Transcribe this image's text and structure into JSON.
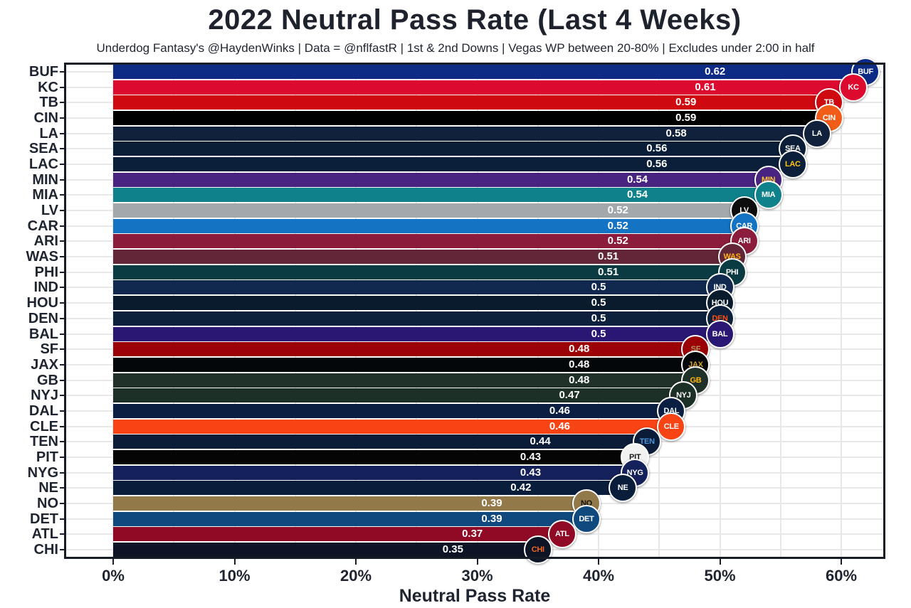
{
  "header": {
    "title": "2022 Neutral Pass Rate (Last 4 Weeks)",
    "subtitle": "Underdog Fantasy's @HaydenWinks | Data = @nflfastR | 1st & 2nd Downs | Vegas WP between 20-80% | Excludes under 2:00 in half"
  },
  "x_axis": {
    "label": "Neutral Pass Rate",
    "ticks": [
      {
        "pct": 0,
        "label": "0%"
      },
      {
        "pct": 10,
        "label": "10%"
      },
      {
        "pct": 20,
        "label": "20%"
      },
      {
        "pct": 30,
        "label": "30%"
      },
      {
        "pct": 40,
        "label": "40%"
      },
      {
        "pct": 50,
        "label": "50%"
      },
      {
        "pct": 60,
        "label": "60%"
      }
    ]
  },
  "colors": {
    "background": "#FFFFFF",
    "grid": "#E8E8E8",
    "frame": "#161C26",
    "text": "#1E2430",
    "value_label": "#FFFFFF"
  },
  "chart_data": {
    "type": "bar",
    "orientation": "horizontal",
    "title": "2022 Neutral Pass Rate (Last 4 Weeks)",
    "subtitle": "Underdog Fantasy's @HaydenWinks | Data = @nflfastR | 1st & 2nd Downs | Vegas WP between 20-80% | Excludes under 2:00 in half",
    "xlabel": "Neutral Pass Rate",
    "ylabel": "",
    "x_tick_labels": [
      "0%",
      "10%",
      "20%",
      "30%",
      "40%",
      "50%",
      "60%"
    ],
    "x_range_pct": [
      0,
      60
    ],
    "gridline_step_pct": 5,
    "grid": true,
    "legend": false,
    "value_labels_shown_inside_bars": true,
    "categories": [
      "BUF",
      "KC",
      "TB",
      "CIN",
      "LA",
      "SEA",
      "LAC",
      "MIN",
      "MIA",
      "LV",
      "CAR",
      "ARI",
      "WAS",
      "PHI",
      "IND",
      "HOU",
      "DEN",
      "BAL",
      "SF",
      "JAX",
      "GB",
      "NYJ",
      "DAL",
      "CLE",
      "TEN",
      "PIT",
      "NYG",
      "NE",
      "NO",
      "DET",
      "ATL",
      "CHI"
    ],
    "values": [
      0.62,
      0.61,
      0.59,
      0.59,
      0.58,
      0.56,
      0.56,
      0.54,
      0.54,
      0.52,
      0.52,
      0.52,
      0.51,
      0.51,
      0.5,
      0.5,
      0.5,
      0.5,
      0.48,
      0.48,
      0.48,
      0.47,
      0.46,
      0.46,
      0.44,
      0.43,
      0.43,
      0.42,
      0.39,
      0.39,
      0.37,
      0.35
    ],
    "bar_colors": [
      "#0D2B85",
      "#DD0A2F",
      "#CE0A10",
      "#000000",
      "#11203B",
      "#0A1E38",
      "#0B1F3A",
      "#482380",
      "#0E818A",
      "#A2A8AC",
      "#1473C2",
      "#8C1C3B",
      "#632639",
      "#0A3B42",
      "#12294F",
      "#0A1B2D",
      "#0D203C",
      "#2A1673",
      "#9A0208",
      "#04070A",
      "#20312A",
      "#1D3028",
      "#0A1F41",
      "#F84315",
      "#0A1C38",
      "#050505",
      "#15215B",
      "#0A1E3B",
      "#91794A",
      "#10497D",
      "#900A26",
      "#0D1425"
    ],
    "teams": [
      {
        "abbr": "BUF",
        "value": 0.62,
        "label": "0.62",
        "color": "#0D2B85"
      },
      {
        "abbr": "KC",
        "value": 0.61,
        "label": "0.61",
        "color": "#DD0A2F"
      },
      {
        "abbr": "TB",
        "value": 0.59,
        "label": "0.59",
        "color": "#CE0A10"
      },
      {
        "abbr": "CIN",
        "value": 0.59,
        "label": "0.59",
        "color": "#000000",
        "logo_bg": "#F25C19"
      },
      {
        "abbr": "LA",
        "value": 0.58,
        "label": "0.58",
        "color": "#11203B"
      },
      {
        "abbr": "SEA",
        "value": 0.56,
        "label": "0.56",
        "color": "#0A1E38"
      },
      {
        "abbr": "LAC",
        "value": 0.56,
        "label": "0.56",
        "color": "#0B1F3A",
        "logo_fg": "#FFC20E"
      },
      {
        "abbr": "MIN",
        "value": 0.54,
        "label": "0.54",
        "color": "#482380",
        "logo_fg": "#FFC62F"
      },
      {
        "abbr": "MIA",
        "value": 0.54,
        "label": "0.54",
        "color": "#0E818A"
      },
      {
        "abbr": "LV",
        "value": 0.52,
        "label": "0.52",
        "color": "#A2A8AC",
        "logo_bg": "#0D0D0D"
      },
      {
        "abbr": "CAR",
        "value": 0.52,
        "label": "0.52",
        "color": "#1473C2"
      },
      {
        "abbr": "ARI",
        "value": 0.52,
        "label": "0.52",
        "color": "#8C1C3B"
      },
      {
        "abbr": "WAS",
        "value": 0.51,
        "label": "0.51",
        "color": "#632639",
        "logo_fg": "#FFB612"
      },
      {
        "abbr": "PHI",
        "value": 0.51,
        "label": "0.51",
        "color": "#0A3B42"
      },
      {
        "abbr": "IND",
        "value": 0.5,
        "label": "0.5",
        "color": "#12294F"
      },
      {
        "abbr": "HOU",
        "value": 0.5,
        "label": "0.5",
        "color": "#0A1B2D"
      },
      {
        "abbr": "DEN",
        "value": 0.5,
        "label": "0.5",
        "color": "#0D203C",
        "logo_fg": "#FB4F14"
      },
      {
        "abbr": "BAL",
        "value": 0.5,
        "label": "0.5",
        "color": "#2A1673"
      },
      {
        "abbr": "SF",
        "value": 0.48,
        "label": "0.48",
        "color": "#9A0208",
        "logo_fg": "#B3995D"
      },
      {
        "abbr": "JAX",
        "value": 0.48,
        "label": "0.48",
        "color": "#04070A",
        "logo_fg": "#D7A22A"
      },
      {
        "abbr": "GB",
        "value": 0.48,
        "label": "0.48",
        "color": "#20312A",
        "logo_fg": "#FFB612"
      },
      {
        "abbr": "NYJ",
        "value": 0.47,
        "label": "0.47",
        "color": "#1D3028"
      },
      {
        "abbr": "DAL",
        "value": 0.46,
        "label": "0.46",
        "color": "#0A1F41"
      },
      {
        "abbr": "CLE",
        "value": 0.46,
        "label": "0.46",
        "color": "#F84315"
      },
      {
        "abbr": "TEN",
        "value": 0.44,
        "label": "0.44",
        "color": "#0A1C38",
        "logo_fg": "#4B92DB"
      },
      {
        "abbr": "PIT",
        "value": 0.43,
        "label": "0.43",
        "color": "#050505",
        "logo_bg": "#F2F2F2",
        "logo_fg": "#1A1A1A"
      },
      {
        "abbr": "NYG",
        "value": 0.43,
        "label": "0.43",
        "color": "#15215B"
      },
      {
        "abbr": "NE",
        "value": 0.42,
        "label": "0.42",
        "color": "#0A1E3B"
      },
      {
        "abbr": "NO",
        "value": 0.39,
        "label": "0.39",
        "color": "#91794A",
        "logo_fg": "#14120B"
      },
      {
        "abbr": "DET",
        "value": 0.39,
        "label": "0.39",
        "color": "#10497D"
      },
      {
        "abbr": "ATL",
        "value": 0.37,
        "label": "0.37",
        "color": "#900A26"
      },
      {
        "abbr": "CHI",
        "value": 0.35,
        "label": "0.35",
        "color": "#0D1425",
        "logo_fg": "#F26522"
      }
    ]
  }
}
